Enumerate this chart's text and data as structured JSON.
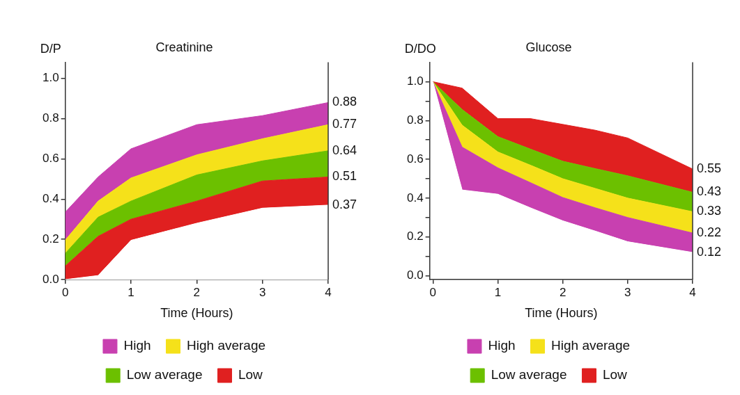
{
  "chart_data": [
    {
      "type": "area",
      "stacked": true,
      "title": "Creatinine",
      "xlabel": "Time (Hours)",
      "ylabel": "D/P",
      "x": [
        0,
        0.5,
        1,
        2,
        3,
        4
      ],
      "series": [
        {
          "color": "#ffffff",
          "values": [
            0,
            0.02,
            0.195,
            0.28,
            0.355,
            0.37
          ]
        },
        {
          "name": "Low",
          "color": "#e02020",
          "values": [
            0.067,
            0.195,
            0.105,
            0.11,
            0.135,
            0.14
          ]
        },
        {
          "name": "Low average",
          "color": "#6cc000",
          "values": [
            0.063,
            0.095,
            0.09,
            0.13,
            0.1,
            0.13
          ]
        },
        {
          "name": "High average",
          "color": "#f5e11a",
          "values": [
            0.066,
            0.08,
            0.115,
            0.1,
            0.11,
            0.13
          ]
        },
        {
          "name": "High",
          "color": "#c840b0",
          "values": [
            0.139,
            0.12,
            0.145,
            0.15,
            0.115,
            0.11
          ]
        }
      ],
      "xlim": [
        0,
        4
      ],
      "xticks": [
        0,
        1,
        2,
        3,
        4
      ],
      "ylim": [
        0,
        1.08
      ],
      "yticks": [
        {
          "value": 0,
          "label": "0.0"
        },
        {
          "value": 0.2,
          "label": "0.2"
        },
        {
          "value": 0.4,
          "label": "0.4"
        },
        {
          "value": 0.6,
          "label": "0.6"
        },
        {
          "value": 0.8,
          "label": "0.8"
        },
        {
          "value": 1,
          "label": "1.0"
        }
      ],
      "grid": false,
      "legend": "bottom",
      "annotations": [
        "0.88",
        "0.77",
        "0.64",
        "0.51",
        "0.37"
      ]
    },
    {
      "type": "area",
      "stacked": true,
      "title": "Glucose",
      "xlabel": "Time (Hours)",
      "ylabel": "D/DO",
      "x": [
        0,
        0.45,
        1,
        1.5,
        2,
        2.5,
        3,
        4
      ],
      "series": [
        {
          "color": "#ffffff",
          "values": [
            1,
            0.442,
            0.42,
            0.35,
            0.283,
            0.23,
            0.175,
            0.12
          ]
        },
        {
          "name": "High",
          "color": "#c840b0",
          "values": [
            0,
            0.221,
            0.136,
            0.13,
            0.12,
            0.12,
            0.125,
            0.1
          ]
        },
        {
          "name": "High average",
          "color": "#f5e11a",
          "values": [
            0,
            0.113,
            0.082,
            0.09,
            0.097,
            0.1,
            0.1,
            0.11
          ]
        },
        {
          "name": "Low average",
          "color": "#6cc000",
          "values": [
            0,
            0.081,
            0.079,
            0.083,
            0.09,
            0.102,
            0.115,
            0.1
          ]
        },
        {
          "name": "Low",
          "color": "#e02020",
          "values": [
            0,
            0.11,
            0.093,
            0.157,
            0.19,
            0.198,
            0.195,
            0.12
          ]
        }
      ],
      "xlim": [
        -0.05,
        4
      ],
      "xticks": [
        0,
        1,
        2,
        3,
        4
      ],
      "ylim": [
        -0.02,
        1.1
      ],
      "yticks": [
        {
          "value": 0,
          "label": "0.0"
        },
        {
          "value": 0.1,
          "label": null
        },
        {
          "value": 0.2,
          "label": "0.2"
        },
        {
          "value": 0.3,
          "label": null
        },
        {
          "value": 0.4,
          "label": "0.4"
        },
        {
          "value": 0.5,
          "label": null
        },
        {
          "value": 0.6,
          "label": "0.6"
        },
        {
          "value": 0.7,
          "label": null
        },
        {
          "value": 0.8,
          "label": "0.8"
        },
        {
          "value": 0.9,
          "label": null
        },
        {
          "value": 1,
          "label": "1.0"
        }
      ],
      "grid": false,
      "legend": "bottom",
      "annotations": [
        "0.55",
        "0.43",
        "0.33",
        "0.22",
        "0.12"
      ]
    }
  ]
}
